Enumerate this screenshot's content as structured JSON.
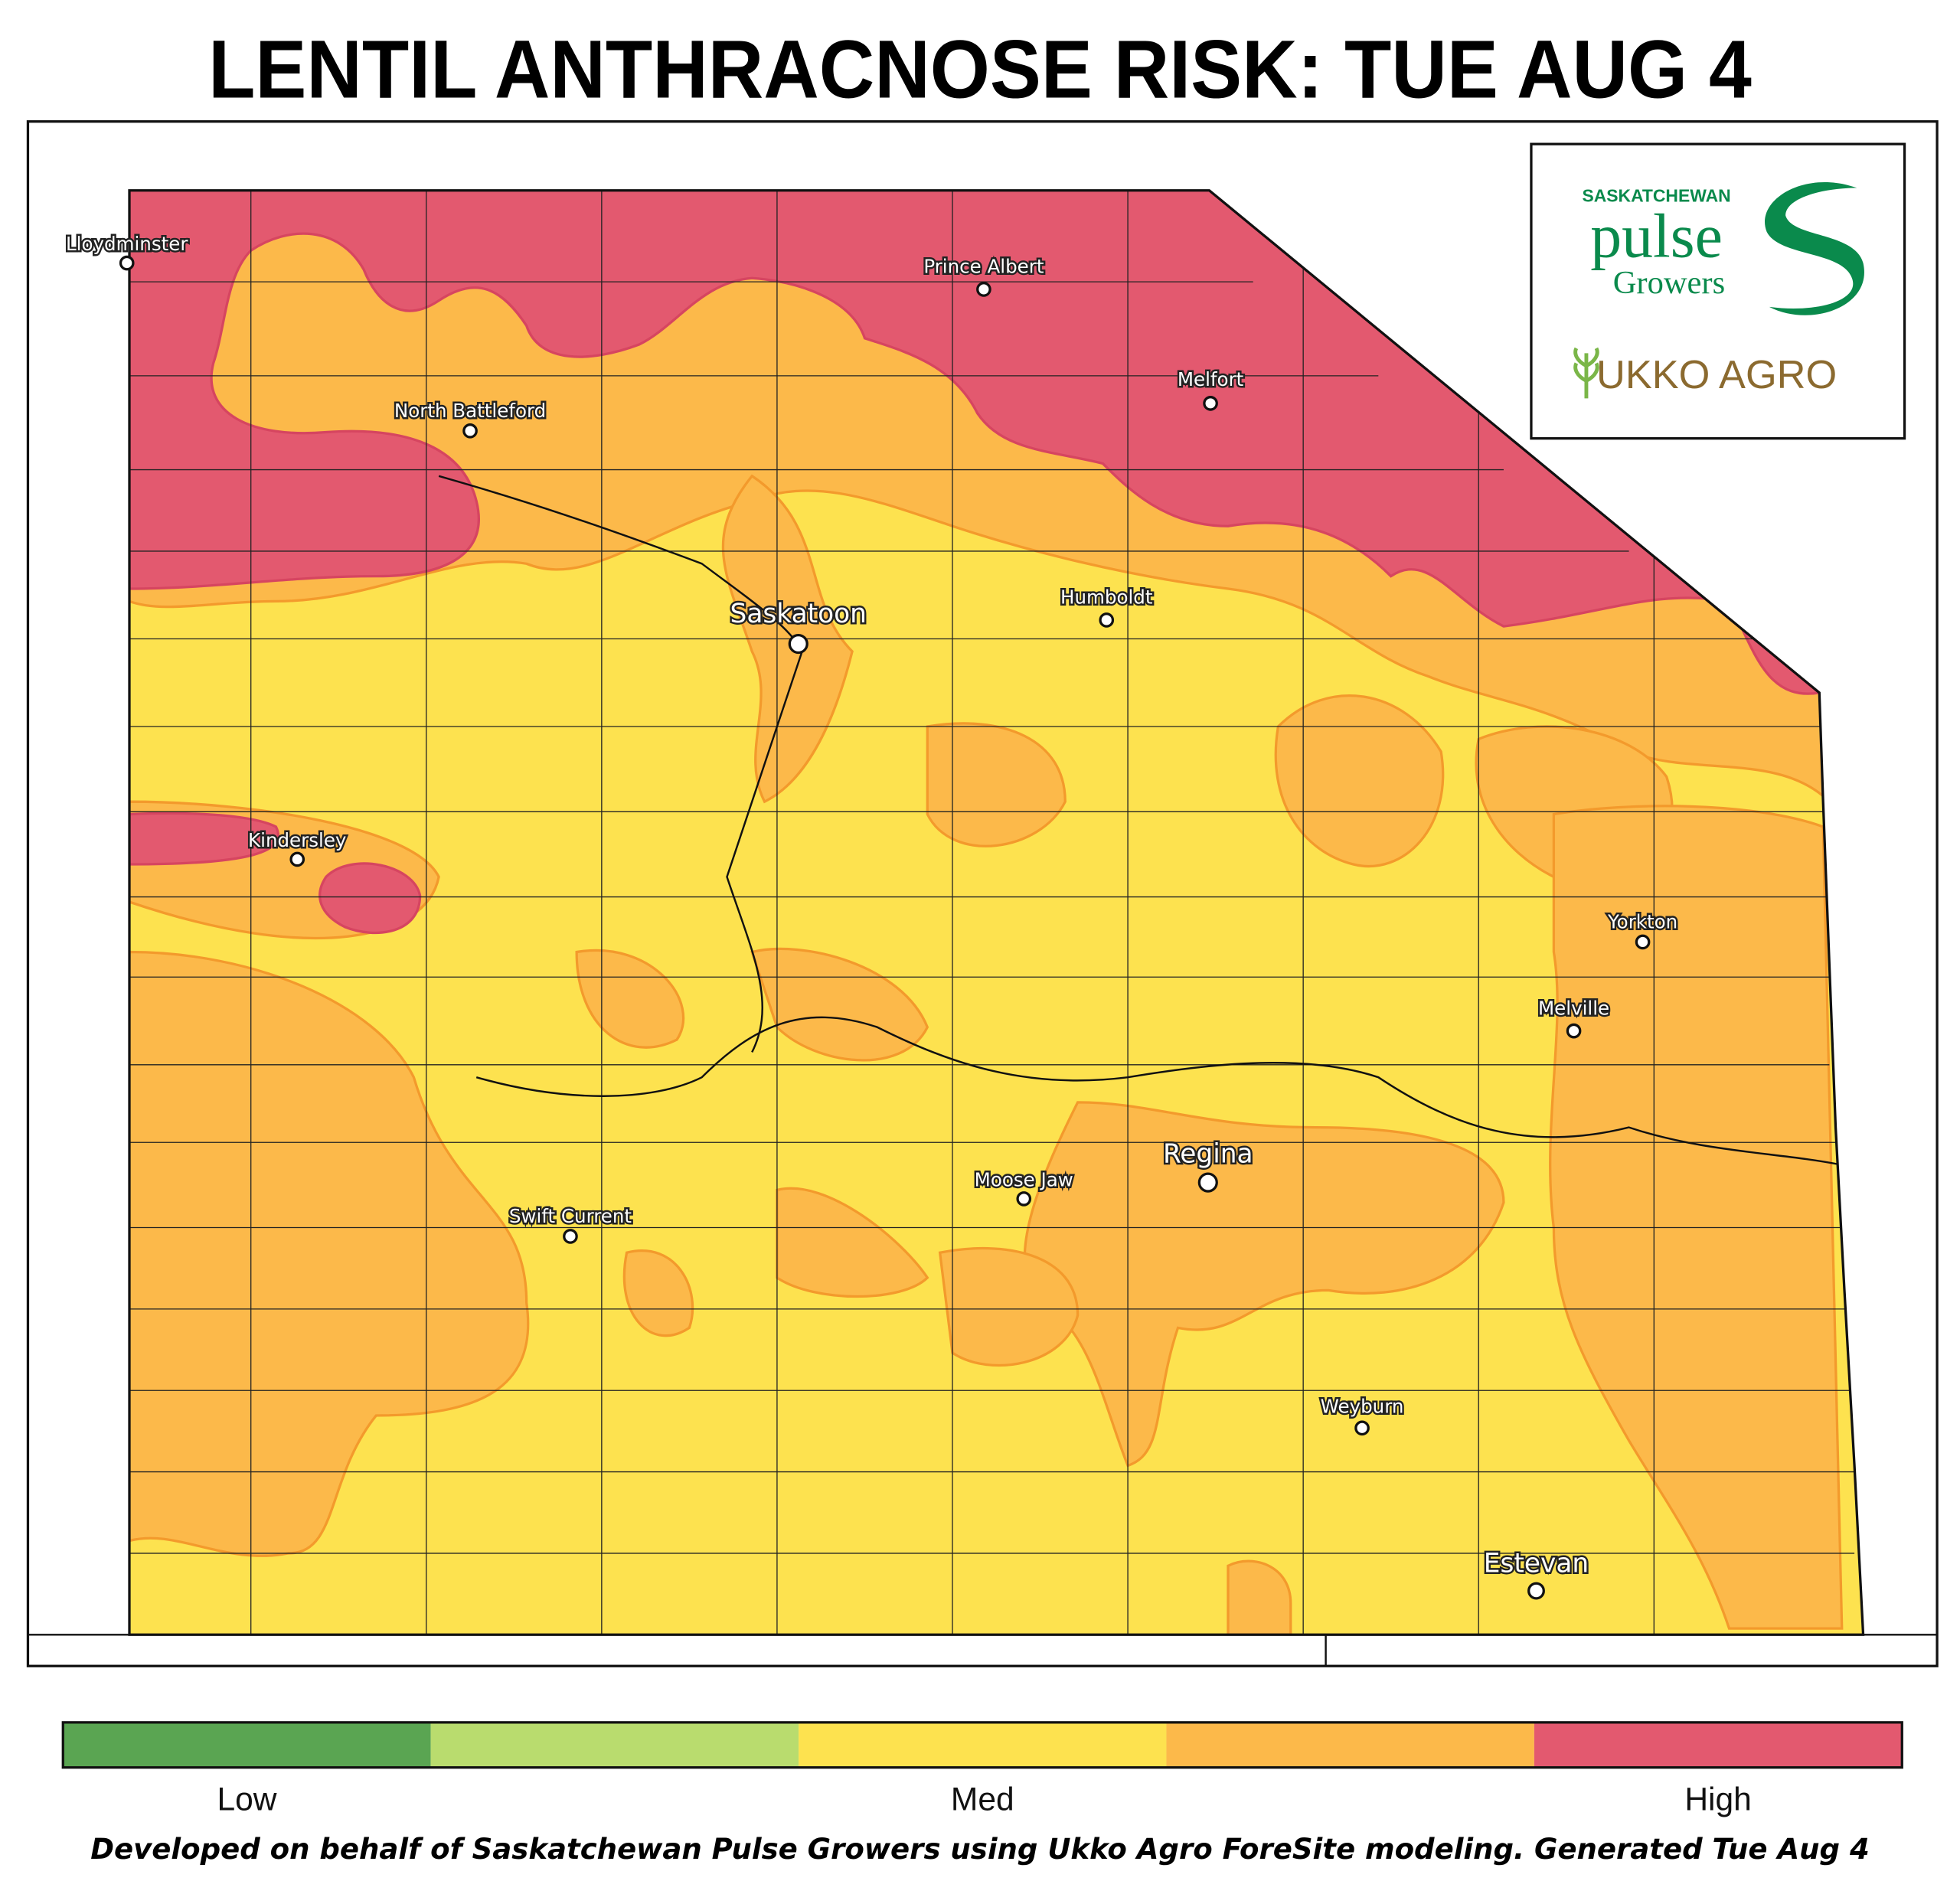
{
  "title": "LENTIL ANTHRACNOSE RISK: TUE AUG 4",
  "logo": {
    "org_small": "SASKATCHEWAN",
    "org_large": "pulse",
    "org_sub": "Growers",
    "partner": "UKKO AGRO"
  },
  "cities": [
    "Lloydminster",
    "Prince Albert",
    "North Battleford",
    "Melfort",
    "Saskatoon",
    "Humboldt",
    "Kindersley",
    "Yorkton",
    "Melville",
    "Regina",
    "Moose Jaw",
    "Swift Current",
    "Weyburn",
    "Estevan"
  ],
  "legend": {
    "colors": [
      "#5aa552",
      "#b9dc6e",
      "#fde24f",
      "#fcb94a",
      "#e3596f"
    ],
    "labels": [
      "Low",
      "Med",
      "High"
    ]
  },
  "footer": "Developed on behalf of Saskatchewan Pulse Growers using Ukko Agro ForeSite modeling. Generated Tue Aug 4"
}
